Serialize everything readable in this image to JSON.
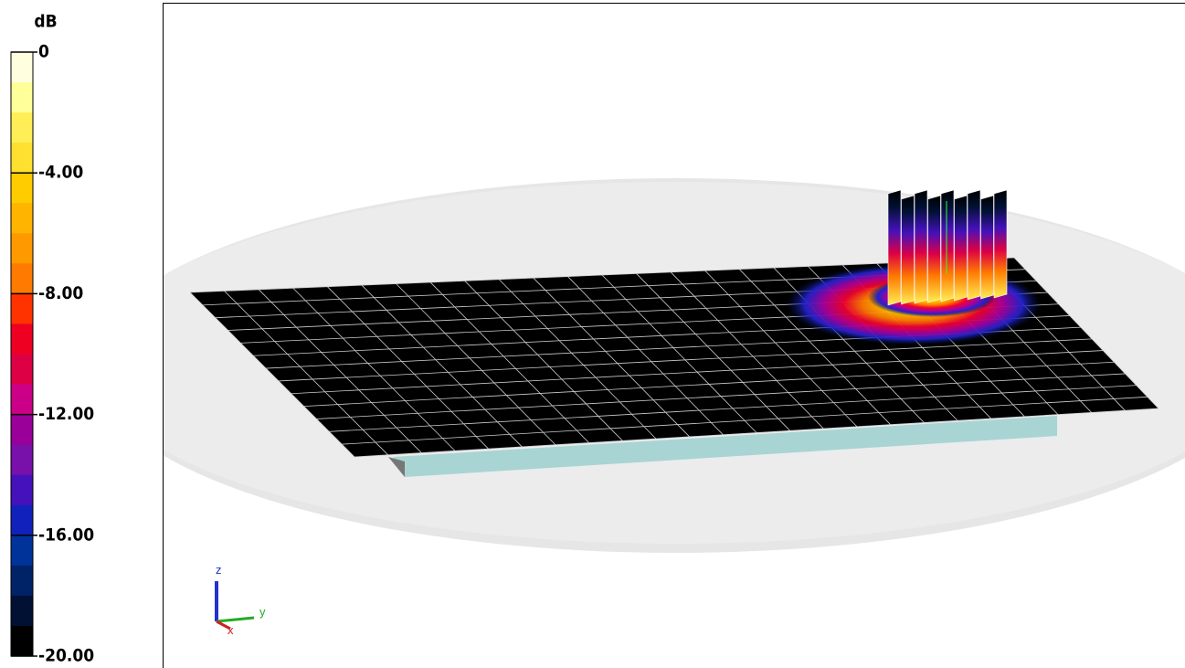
{
  "colorbar": {
    "unit": "dB",
    "range": [
      -20,
      0
    ],
    "ticks": [
      {
        "value": 0,
        "label": "0"
      },
      {
        "value": -4,
        "label": "-4.00"
      },
      {
        "value": -8,
        "label": "-8.00"
      },
      {
        "value": -12,
        "label": "-12.00"
      },
      {
        "value": -16,
        "label": "-16.00"
      },
      {
        "value": -20,
        "label": "-20.00"
      }
    ],
    "band_colors": [
      "#ffffe0",
      "#ffff9a",
      "#ffee55",
      "#ffe030",
      "#ffcc00",
      "#ffb400",
      "#ff9900",
      "#ff7a00",
      "#ff3300",
      "#ee0022",
      "#dd0044",
      "#cc0088",
      "#990099",
      "#7711aa",
      "#4411bb",
      "#1122bb",
      "#003399",
      "#002266",
      "#001133",
      "#000000"
    ]
  },
  "axes_triad": {
    "z": "z",
    "y": "y",
    "x": "x"
  }
}
